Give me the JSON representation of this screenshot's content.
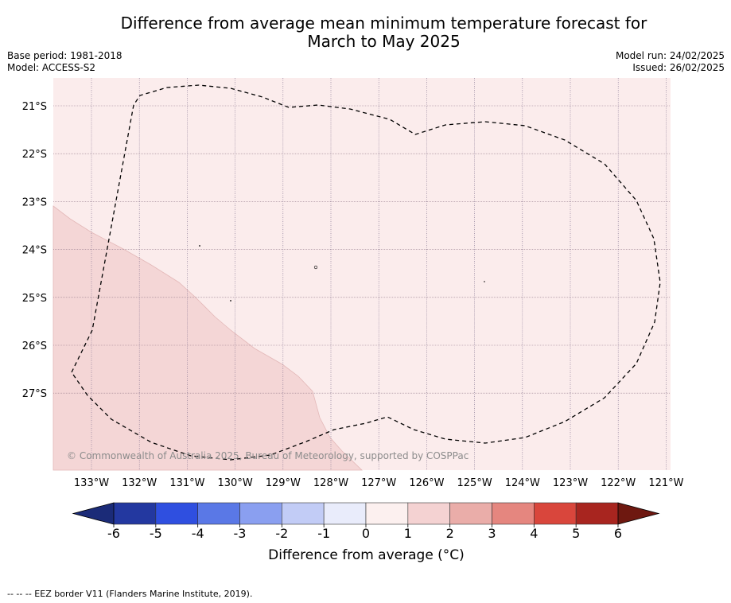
{
  "title": "Difference from average mean minimum temperature forecast for\nMarch to May 2025",
  "meta_left": {
    "base_period": "Base period: 1981-2018",
    "model": "Model: ACCESS-S2"
  },
  "meta_right": {
    "model_run": "Model run: 24/02/2025",
    "issued": "Issued: 26/02/2025"
  },
  "map": {
    "lat_labels": [
      "21°S",
      "22°S",
      "23°S",
      "24°S",
      "25°S",
      "26°S",
      "27°S"
    ],
    "lon_labels": [
      "133°W",
      "132°W",
      "131°W",
      "130°W",
      "129°W",
      "128°W",
      "127°W",
      "126°W",
      "125°W",
      "124°W",
      "123°W",
      "122°W",
      "121°W"
    ],
    "background_category": "0 to 1",
    "region_category": "1 to 2",
    "copyright": "© Commonwealth of Australia 2025, Bureau of Meteorology, supported by COSPPac"
  },
  "colorbar": {
    "ticks": [
      "-6",
      "-5",
      "-4",
      "-3",
      "-2",
      "-1",
      "0",
      "1",
      "2",
      "3",
      "4",
      "5",
      "6"
    ],
    "colors": [
      "#2338a0",
      "#2f4fe0",
      "#5a78e6",
      "#8a9ff0",
      "#c2ccf6",
      "#e9ecfb",
      "#fcf0ef",
      "#f4d2d2",
      "#eaada9",
      "#e5867f",
      "#d9463c",
      "#a8251f"
    ],
    "under_color": "#1b2b78",
    "over_color": "#6e1810",
    "label": "Difference from average (°C)"
  },
  "footnote": "-- -- -- EEZ border V11 (Flanders Marine Institute, 2019)."
}
